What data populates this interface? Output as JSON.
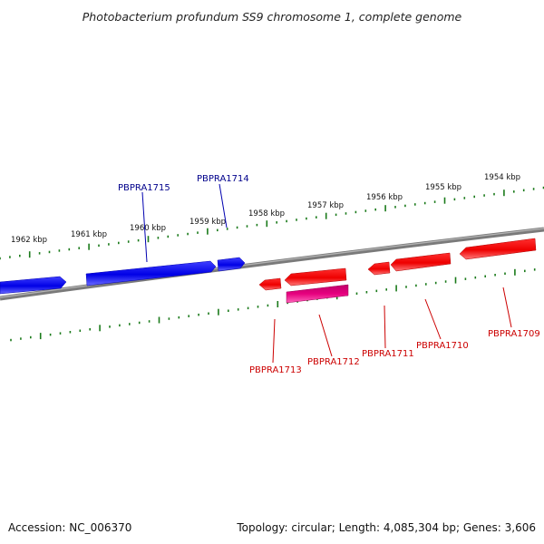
{
  "title": "Photobacterium profundum SS9 chromosome 1, complete genome",
  "footer": {
    "accession": "Accession: NC_006370",
    "summary": "Topology: circular; Length: 4,085,304 bp; Genes: 3,606"
  },
  "colors": {
    "forward_gene": "#0000e6",
    "reverse_gene": "#ff0000",
    "rna_gene": "#e6007e",
    "tick": "#1a7a1a",
    "backbone": "#808080",
    "forward_label": "#00008b",
    "reverse_label": "#cc0000"
  },
  "ticks": [
    {
      "label": "1962 kbp"
    },
    {
      "label": "1961 kbp"
    },
    {
      "label": "1960 kbp"
    },
    {
      "label": "1959 kbp"
    },
    {
      "label": "1958 kbp"
    },
    {
      "label": "1957 kbp"
    },
    {
      "label": "1956 kbp"
    },
    {
      "label": "1955 kbp"
    },
    {
      "label": "1954 kbp"
    }
  ],
  "genes": {
    "forward": [
      {
        "label": "PBPRA1715"
      },
      {
        "label": "PBPRA1714"
      }
    ],
    "reverse": [
      {
        "label": "PBPRA1713"
      },
      {
        "label": "PBPRA1712"
      },
      {
        "label": "PBPRA1711"
      },
      {
        "label": "PBPRA1710"
      },
      {
        "label": "PBPRA1709"
      }
    ]
  }
}
